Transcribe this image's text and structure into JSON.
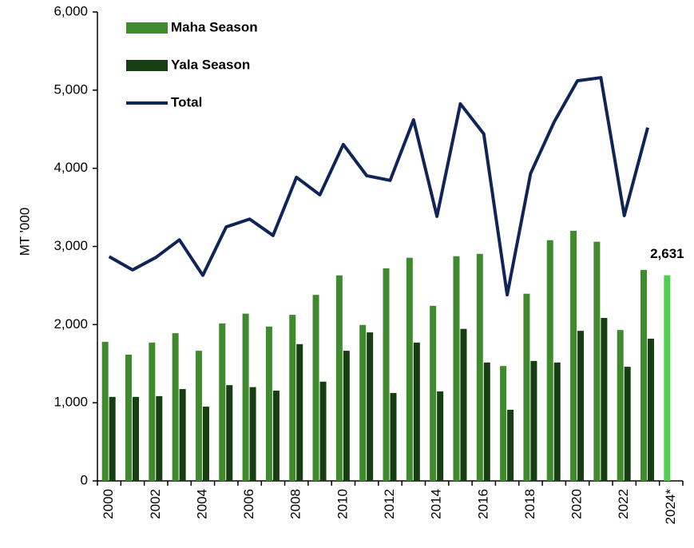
{
  "chart_data": {
    "type": "bar_line",
    "y_label": "MT '000",
    "categories": [
      "2000",
      null,
      "2002",
      null,
      "2004",
      null,
      "2006",
      null,
      "2008",
      null,
      "2010",
      null,
      "2012",
      null,
      "2014",
      null,
      "2016",
      null,
      "2018",
      null,
      "2020",
      null,
      "2022",
      null,
      "2024*"
    ],
    "ylim": [
      0,
      6000
    ],
    "yticks": [
      0,
      {
        "value": 1000,
        "label": "1,000"
      },
      {
        "value": 2000,
        "label": "2,000"
      },
      {
        "value": 3000,
        "label": "3,000"
      },
      {
        "value": 4000,
        "label": "4,000"
      },
      {
        "value": 5000,
        "label": "5,000"
      },
      {
        "value": 6000,
        "label": "6,000"
      }
    ],
    "legend": "upper left",
    "series": [
      {
        "name": "Maha Season",
        "type": "bar",
        "color": "#3f8a2c",
        "colors": [
          "#3f8a2c",
          "#3f8a2c",
          "#3f8a2c",
          "#3f8a2c",
          "#3f8a2c",
          "#3f8a2c",
          "#3f8a2c",
          "#3f8a2c",
          "#3f8a2c",
          "#3f8a2c",
          "#3f8a2c",
          "#3f8a2c",
          "#3f8a2c",
          "#3f8a2c",
          "#3f8a2c",
          "#3f8a2c",
          "#3f8a2c",
          "#3f8a2c",
          "#3f8a2c",
          "#3f8a2c",
          "#3f8a2c",
          "#3f8a2c",
          "#3f8a2c",
          "#3f8a2c",
          "#4fcf4f"
        ],
        "values": [
          1780,
          1615,
          1770,
          1890,
          1665,
          2015,
          2140,
          1975,
          2125,
          2380,
          2630,
          1995,
          2720,
          2855,
          2240,
          2875,
          2905,
          1470,
          2395,
          3080,
          3200,
          3060,
          1930,
          2700,
          2631
        ],
        "value_labels": [
          null,
          null,
          null,
          null,
          null,
          null,
          null,
          null,
          null,
          null,
          null,
          null,
          null,
          null,
          null,
          null,
          null,
          null,
          null,
          null,
          null,
          null,
          null,
          null,
          "2,631"
        ]
      },
      {
        "name": "Yala Season",
        "type": "bar",
        "color": "#173d12",
        "values": [
          1075,
          1075,
          1085,
          1175,
          950,
          1225,
          1200,
          1155,
          1750,
          1270,
          1665,
          1900,
          1125,
          1770,
          1145,
          1945,
          1515,
          910,
          1535,
          1515,
          1920,
          2085,
          1460,
          1820,
          null
        ]
      },
      {
        "name": "Total",
        "type": "line",
        "color": "#0f2557",
        "values": [
          2870,
          2700,
          2860,
          3085,
          2630,
          3250,
          3350,
          3140,
          3885,
          3660,
          4305,
          3905,
          3845,
          4620,
          3385,
          4825,
          4440,
          2380,
          3935,
          4590,
          5120,
          5160,
          3395,
          4520,
          null
        ]
      }
    ]
  }
}
